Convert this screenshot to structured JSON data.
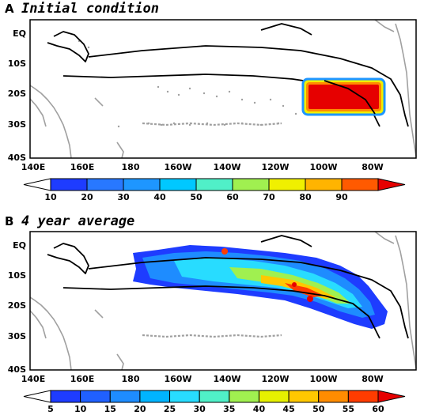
{
  "panels": [
    {
      "letter": "A",
      "title": "Initial condition",
      "lat_labels": [
        "EQ",
        "10S",
        "20S",
        "30S",
        "40S"
      ],
      "lon_labels": [
        "140E",
        "160E",
        "180",
        "160W",
        "140W",
        "120W",
        "100W",
        "80W"
      ],
      "colorbar_labels": [
        "10",
        "20",
        "30",
        "40",
        "50",
        "60",
        "70",
        "80",
        "90"
      ]
    },
    {
      "letter": "B",
      "title": "4 year average",
      "lat_labels": [
        "EQ",
        "10S",
        "20S",
        "30S",
        "40S"
      ],
      "lon_labels": [
        "140E",
        "160E",
        "180",
        "160W",
        "140W",
        "120W",
        "100W",
        "80W"
      ],
      "colorbar_labels": [
        "5",
        "10",
        "15",
        "20",
        "25",
        "30",
        "35",
        "40",
        "45",
        "50",
        "55",
        "60"
      ]
    }
  ],
  "colors": {
    "scale_a": [
      "#ffffff",
      "#1e3cff",
      "#2878ff",
      "#1e96ff",
      "#00c8ff",
      "#50f0c8",
      "#a0f050",
      "#f0f000",
      "#ffb400",
      "#ff5a00",
      "#e60000"
    ],
    "scale_b": [
      "#ffffff",
      "#1e3cff",
      "#2060ff",
      "#1e8cff",
      "#00b4ff",
      "#28dcff",
      "#50f0c8",
      "#a0f050",
      "#e6f000",
      "#ffc800",
      "#ff8c00",
      "#ff3c00",
      "#e60000"
    ],
    "coast": "#a0a0a0"
  }
}
